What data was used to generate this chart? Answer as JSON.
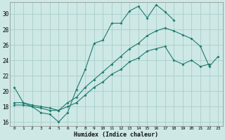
{
  "xlabel": "Humidex (Indice chaleur)",
  "ylabel": "",
  "bg_color": "#cde8e5",
  "grid_color": "#a8ceca",
  "line_color": "#1e7a6e",
  "xlim": [
    -0.5,
    23.5
  ],
  "ylim": [
    15.5,
    31.5
  ],
  "xticks": [
    0,
    1,
    2,
    3,
    4,
    5,
    6,
    7,
    8,
    9,
    10,
    11,
    12,
    13,
    14,
    15,
    16,
    17,
    18,
    19,
    20,
    21,
    22,
    23
  ],
  "yticks": [
    16,
    18,
    20,
    22,
    24,
    26,
    28,
    30
  ],
  "line1_x": [
    0,
    1,
    2,
    3,
    4,
    5,
    6,
    7,
    8,
    9,
    10,
    11,
    12,
    13,
    14,
    15,
    16,
    17,
    18
  ],
  "line1_y": [
    20.5,
    18.5,
    18.0,
    17.2,
    17.0,
    16.0,
    17.2,
    20.2,
    22.8,
    26.2,
    26.6,
    28.8,
    28.8,
    30.4,
    31.0,
    29.5,
    31.2,
    30.3,
    29.2
  ],
  "line2_x": [
    0,
    1,
    2,
    3,
    4,
    5,
    6,
    7,
    8,
    9,
    10,
    11,
    12,
    13,
    14,
    15,
    16,
    17,
    18,
    19,
    20,
    21,
    22,
    23
  ],
  "line2_y": [
    18.5,
    18.5,
    18.2,
    18.0,
    17.8,
    17.5,
    18.5,
    19.2,
    20.5,
    21.5,
    22.5,
    23.5,
    24.5,
    25.5,
    26.2,
    27.2,
    27.8,
    28.2,
    27.8,
    27.3,
    26.8,
    25.8,
    23.2,
    24.5
  ],
  "line3_x": [
    0,
    1,
    2,
    3,
    4,
    5,
    6,
    7,
    8,
    9,
    10,
    11,
    12,
    13,
    14,
    15,
    16,
    17,
    18,
    19,
    20,
    21,
    22,
    23
  ],
  "line3_y": [
    18.2,
    18.2,
    18.0,
    17.8,
    17.5,
    17.5,
    18.0,
    18.5,
    19.5,
    20.5,
    21.2,
    22.2,
    22.8,
    23.8,
    24.3,
    25.2,
    25.5,
    25.8,
    24.0,
    23.5,
    24.0,
    23.2,
    23.5,
    null
  ]
}
